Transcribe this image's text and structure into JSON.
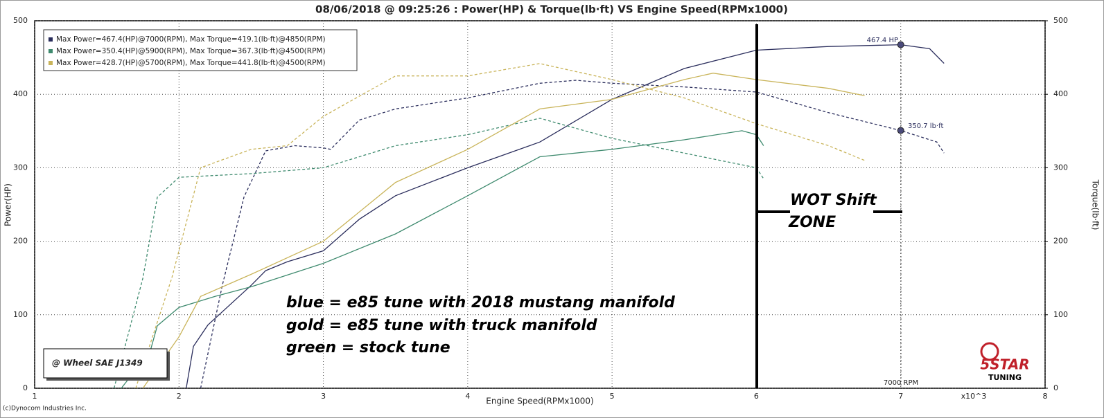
{
  "chart_data": {
    "type": "line",
    "title": "08/06/2018 @ 09:25:26 : Power(HP) & Torque(lb·ft) VS Engine Speed(RPMx1000)",
    "x_label": "Engine Speed(RPMx1000)",
    "y_label": "Power(HP)",
    "y2_label": "Torque(lb·ft)",
    "x_unit_note": "x10^3",
    "xlim": [
      1,
      8
    ],
    "xticks": [
      1,
      2,
      3,
      4,
      5,
      6,
      7,
      8
    ],
    "ylim": [
      0,
      500
    ],
    "yticks": [
      0,
      100,
      200,
      300,
      400,
      500
    ],
    "y2lim": [
      0,
      500
    ],
    "y2ticks": [
      0,
      100,
      200,
      300,
      400,
      500
    ],
    "grid": true,
    "legend": [
      {
        "text": "Max Power=467.4(HP)@7000(RPM), Max Torque=419.1(lb·ft)@4850(RPM)",
        "color": "#2a2d5c"
      },
      {
        "text": "Max Power=350.4(HP)@5900(RPM), Max Torque=367.3(lb·ft)@4500(RPM)",
        "color": "#3e8a6e"
      },
      {
        "text": "Max Power=428.7(HP)@5700(RPM), Max Torque=441.8(lb·ft)@4500(RPM)",
        "color": "#c9b45a"
      }
    ],
    "series": [
      {
        "color": "#2a2d5c",
        "style": "solid",
        "x": [
          2.05,
          2.1,
          2.2,
          2.5,
          2.6,
          2.75,
          3,
          3.25,
          3.5,
          4,
          4.5,
          5,
          5.5,
          6,
          6.5,
          7,
          7.2,
          7.3
        ],
        "values": [
          0,
          57,
          86,
          140,
          160,
          172,
          187,
          230,
          262,
          300,
          335,
          393,
          435,
          460,
          465,
          467.4,
          462,
          442
        ]
      },
      {
        "color": "#2a2d5c",
        "style": "dashed",
        "axis": "y2",
        "x": [
          2.15,
          2.3,
          2.45,
          2.6,
          2.8,
          3,
          3.05,
          3.25,
          3.5,
          4,
          4.5,
          4.75,
          5,
          5.5,
          6,
          6.5,
          7,
          7.25,
          7.3
        ],
        "values": [
          0,
          140,
          260,
          323,
          330,
          327,
          325,
          365,
          380,
          395,
          415,
          419,
          415,
          410,
          403,
          375,
          350.7,
          335,
          320
        ]
      },
      {
        "color": "#3e8a6e",
        "style": "solid",
        "x": [
          1.6,
          1.8,
          1.85,
          2,
          2.25,
          2.5,
          3,
          3.5,
          4,
          4.5,
          5,
          5.5,
          5.9,
          6,
          6.05
        ],
        "values": [
          0,
          50,
          85,
          110,
          125,
          138,
          170,
          210,
          262,
          315,
          325,
          338,
          350.4,
          345,
          330
        ]
      },
      {
        "color": "#3e8a6e",
        "style": "dashed",
        "axis": "y2",
        "x": [
          1.55,
          1.75,
          1.85,
          2,
          2.5,
          3,
          3.5,
          4,
          4.5,
          5,
          5.5,
          6,
          6.05
        ],
        "values": [
          0,
          150,
          260,
          287,
          292,
          300,
          330,
          345,
          367.3,
          340,
          320,
          300,
          285
        ]
      },
      {
        "color": "#c9b45a",
        "style": "solid",
        "x": [
          1.75,
          2,
          2.15,
          2.5,
          3,
          3.5,
          4,
          4.5,
          5,
          5.5,
          5.7,
          6,
          6.5,
          6.75
        ],
        "values": [
          0,
          70,
          125,
          155,
          200,
          280,
          325,
          380,
          393,
          420,
          428.7,
          420,
          408,
          398
        ]
      },
      {
        "color": "#c9b45a",
        "style": "dashed",
        "axis": "y2",
        "x": [
          1.7,
          1.95,
          2.15,
          2.5,
          2.75,
          3,
          3.5,
          4,
          4.5,
          5,
          5.5,
          6,
          6.5,
          6.75
        ],
        "values": [
          0,
          150,
          300,
          325,
          330,
          370,
          425,
          425,
          441.8,
          420,
          395,
          360,
          330,
          310
        ]
      }
    ],
    "annotations": {
      "power_marker": "467.4 HP",
      "torque_marker": "350.7 lb·ft",
      "rpm_marker": "7000 RPM",
      "condition": "@ Wheel SAE J1349",
      "notes": [
        "blue = e85 tune with 2018 mustang manifold",
        "gold = e85 tune with truck manifold",
        "green = stock tune"
      ],
      "shift_zone": [
        "WOT Shift",
        "ZONE"
      ],
      "copyright": "(c)Dynocom Industries Inc.",
      "logo": [
        "5STAR",
        "TUNING"
      ]
    }
  }
}
